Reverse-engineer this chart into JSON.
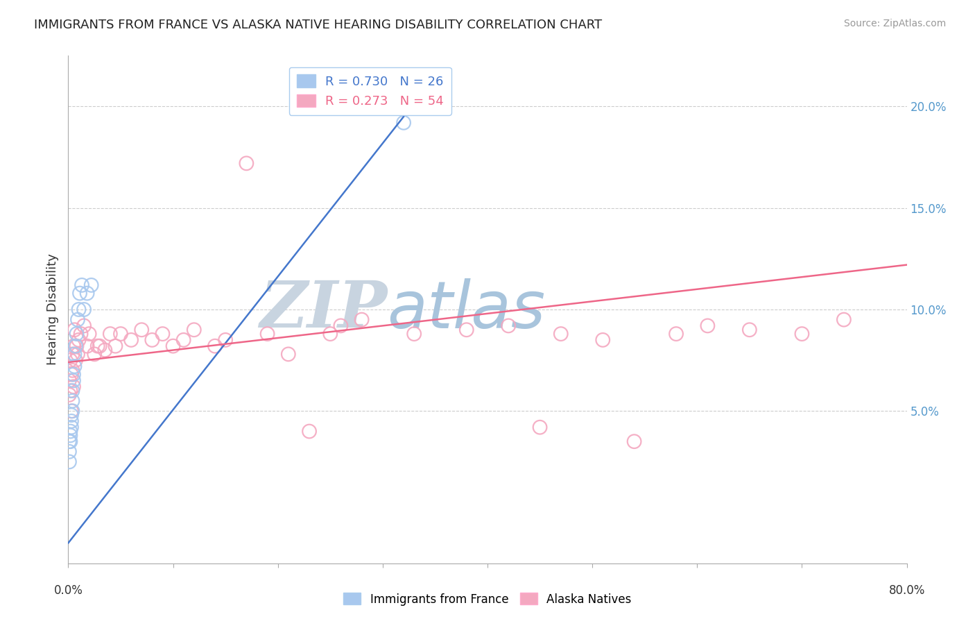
{
  "title": "IMMIGRANTS FROM FRANCE VS ALASKA NATIVE HEARING DISABILITY CORRELATION CHART",
  "source": "Source: ZipAtlas.com",
  "ylabel": "Hearing Disability",
  "right_yticks": [
    "5.0%",
    "10.0%",
    "15.0%",
    "20.0%"
  ],
  "right_ytick_vals": [
    0.05,
    0.1,
    0.15,
    0.2
  ],
  "legend_blue_r": "R = 0.730",
  "legend_blue_n": "N = 26",
  "legend_pink_r": "R = 0.273",
  "legend_pink_n": "N = 54",
  "blue_color": "#A8C8EE",
  "pink_color": "#F4A8C0",
  "blue_line_color": "#4477CC",
  "pink_line_color": "#EE6688",
  "watermark_zip": "ZIP",
  "watermark_atlas": "atlas",
  "watermark_color_zip": "#C8D4E0",
  "watermark_color_atlas": "#A8C4DC",
  "xlim": [
    0.0,
    0.8
  ],
  "ylim": [
    -0.025,
    0.225
  ],
  "blue_line_x0": 0.0,
  "blue_line_y0": -0.015,
  "blue_line_x1": 0.32,
  "blue_line_y1": 0.195,
  "pink_line_x0": 0.0,
  "pink_line_y0": 0.074,
  "pink_line_x1": 0.8,
  "pink_line_y1": 0.122,
  "blue_scatter_x": [
    0.001,
    0.001,
    0.001,
    0.002,
    0.002,
    0.002,
    0.003,
    0.003,
    0.003,
    0.004,
    0.004,
    0.004,
    0.005,
    0.005,
    0.006,
    0.006,
    0.007,
    0.008,
    0.009,
    0.01,
    0.011,
    0.013,
    0.015,
    0.018,
    0.022,
    0.32
  ],
  "blue_scatter_y": [
    0.03,
    0.035,
    0.025,
    0.035,
    0.04,
    0.038,
    0.042,
    0.045,
    0.048,
    0.05,
    0.055,
    0.06,
    0.065,
    0.068,
    0.072,
    0.078,
    0.082,
    0.088,
    0.095,
    0.1,
    0.108,
    0.112,
    0.1,
    0.108,
    0.112,
    0.192
  ],
  "pink_scatter_x": [
    0.001,
    0.001,
    0.002,
    0.002,
    0.003,
    0.003,
    0.004,
    0.004,
    0.005,
    0.005,
    0.006,
    0.007,
    0.008,
    0.009,
    0.01,
    0.012,
    0.015,
    0.018,
    0.02,
    0.025,
    0.028,
    0.03,
    0.035,
    0.04,
    0.045,
    0.05,
    0.06,
    0.07,
    0.08,
    0.09,
    0.1,
    0.11,
    0.12,
    0.14,
    0.15,
    0.17,
    0.19,
    0.21,
    0.23,
    0.25,
    0.26,
    0.28,
    0.33,
    0.38,
    0.42,
    0.45,
    0.47,
    0.51,
    0.54,
    0.58,
    0.61,
    0.65,
    0.7,
    0.74
  ],
  "pink_scatter_y": [
    0.058,
    0.065,
    0.06,
    0.075,
    0.05,
    0.068,
    0.07,
    0.078,
    0.062,
    0.082,
    0.09,
    0.075,
    0.082,
    0.078,
    0.085,
    0.088,
    0.092,
    0.082,
    0.088,
    0.078,
    0.082,
    0.082,
    0.08,
    0.088,
    0.082,
    0.088,
    0.085,
    0.09,
    0.085,
    0.088,
    0.082,
    0.085,
    0.09,
    0.082,
    0.085,
    0.172,
    0.088,
    0.078,
    0.04,
    0.088,
    0.092,
    0.095,
    0.088,
    0.09,
    0.092,
    0.042,
    0.088,
    0.085,
    0.035,
    0.088,
    0.092,
    0.09,
    0.088,
    0.095
  ]
}
